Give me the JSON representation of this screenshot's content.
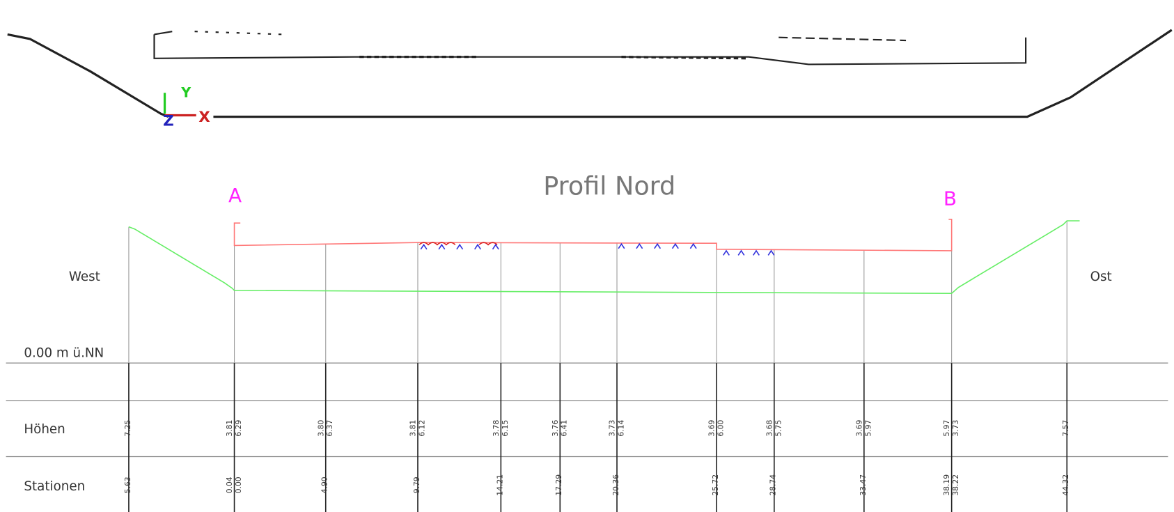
{
  "axis_icon": {
    "y": "Y",
    "z": "Z",
    "x": "X"
  },
  "title": "Profil Nord",
  "markers": {
    "start": "A",
    "end": "B"
  },
  "sides": {
    "west": "West",
    "east": "Ost"
  },
  "datum": "0.00 m ü.NN",
  "rows": {
    "heights": "Höhen",
    "stations": "Stationen"
  },
  "columns": [
    {
      "heights": [
        "7.25"
      ],
      "stations": [
        "5.63"
      ]
    },
    {
      "heights": [
        "3.81",
        "6.29"
      ],
      "stations": [
        "0.04",
        "0.00"
      ]
    },
    {
      "heights": [
        "3.80",
        "6.37"
      ],
      "stations": [
        "4.90"
      ]
    },
    {
      "heights": [
        "3.81",
        "6.12"
      ],
      "stations": [
        "9.79"
      ]
    },
    {
      "heights": [
        "3.78",
        "6.15"
      ],
      "stations": [
        "14.21"
      ]
    },
    {
      "heights": [
        "3.76",
        "6.41"
      ],
      "stations": [
        "17.29"
      ]
    },
    {
      "heights": [
        "3.73",
        "6.14"
      ],
      "stations": [
        "20.36"
      ]
    },
    {
      "heights": [
        "3.69",
        "6.00"
      ],
      "stations": [
        "25.72"
      ]
    },
    {
      "heights": [
        "3.68",
        "5.75"
      ],
      "stations": [
        "28.74"
      ]
    },
    {
      "heights": [
        "3.69",
        "5.97"
      ],
      "stations": [
        "33.47"
      ]
    },
    {
      "heights": [
        "5.97",
        "3.73"
      ],
      "stations": [
        "38.19",
        "38.22"
      ]
    },
    {
      "heights": [
        "7.57"
      ],
      "stations": [
        "44.32"
      ]
    }
  ]
}
